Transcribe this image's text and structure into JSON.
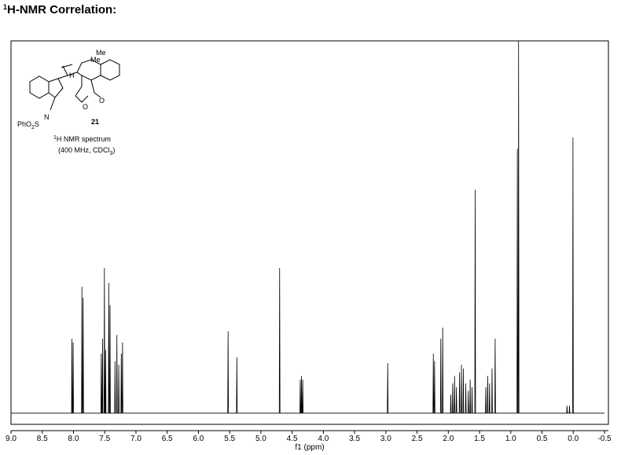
{
  "heading": [
    "1",
    "H-NMR Correlation:"
  ],
  "structure": {
    "atoms": [
      "Me",
      "Me",
      "H",
      "O",
      "O",
      "N"
    ],
    "sulfonyl": [
      "PhO",
      "2",
      "S"
    ],
    "compound": "21"
  },
  "caption": {
    "line1": [
      "1",
      "H NMR spectrum"
    ],
    "line2": [
      "(400 MHz, CDCl",
      "3",
      ")"
    ]
  },
  "chart_data": {
    "type": "line",
    "xlabel": "f1 (ppm)",
    "xlim": [
      9.0,
      -0.5
    ],
    "xticks": [
      {
        "value": 9.0,
        "label": "9.0"
      },
      8.5,
      {
        "value": 8.0,
        "label": "8.0"
      },
      7.5,
      {
        "value": 7.0,
        "label": "7.0"
      },
      6.5,
      {
        "value": 6.0,
        "label": "6.0"
      },
      5.5,
      {
        "value": 5.0,
        "label": "5.0"
      },
      4.5,
      {
        "value": 4.0,
        "label": "4.0"
      },
      3.5,
      {
        "value": 3.0,
        "label": "3.0"
      },
      2.5,
      {
        "value": 2.0,
        "label": "2.0"
      },
      1.5,
      {
        "value": 1.0,
        "label": "1.0"
      },
      0.5,
      {
        "value": 0.0,
        "label": "0.0"
      },
      -0.5
    ],
    "ylim": [
      -3,
      100
    ],
    "series": [
      {
        "color": "#000000",
        "x": [
          9.0,
          8.031,
          8.025,
          8.019,
          8.011,
          8.005,
          7.999,
          7.871,
          7.865,
          7.859,
          7.851,
          7.845,
          7.839,
          7.561,
          7.555,
          7.549,
          7.541,
          7.535,
          7.529,
          7.511,
          7.505,
          7.499,
          7.491,
          7.485,
          7.479,
          7.441,
          7.435,
          7.429,
          7.421,
          7.415,
          7.409,
          7.341,
          7.335,
          7.329,
          7.311,
          7.305,
          7.299,
          7.281,
          7.275,
          7.269,
          7.241,
          7.235,
          7.229,
          7.221,
          7.215,
          7.209,
          5.531,
          5.525,
          5.519,
          5.391,
          5.385,
          5.379,
          4.706,
          4.7,
          4.694,
          4.376,
          4.37,
          4.364,
          4.356,
          4.35,
          4.344,
          4.336,
          4.33,
          4.324,
          2.976,
          2.97,
          2.964,
          2.246,
          2.24,
          2.234,
          2.226,
          2.22,
          2.214,
          2.126,
          2.12,
          2.114,
          2.096,
          2.09,
          2.084,
          1.966,
          1.96,
          1.954,
          1.936,
          1.93,
          1.924,
          1.906,
          1.9,
          1.894,
          1.876,
          1.87,
          1.864,
          1.826,
          1.82,
          1.814,
          1.796,
          1.79,
          1.784,
          1.766,
          1.76,
          1.754,
          1.726,
          1.72,
          1.714,
          1.686,
          1.68,
          1.674,
          1.656,
          1.65,
          1.644,
          1.626,
          1.62,
          1.614,
          1.576,
          1.57,
          1.564,
          1.406,
          1.4,
          1.394,
          1.376,
          1.37,
          1.364,
          1.346,
          1.34,
          1.334,
          1.306,
          1.3,
          1.294,
          1.256,
          1.25,
          1.244,
          0.901,
          0.895,
          0.889,
          0.881,
          0.875,
          0.869,
          0.106,
          0.1,
          0.094,
          0.066,
          0.06,
          0.054,
          0.011,
          0.005,
          -0.001,
          -0.5
        ],
        "values": [
          0,
          0,
          20,
          0,
          0,
          19,
          0,
          0,
          34,
          0,
          0,
          31,
          0,
          0,
          16,
          0,
          0,
          20,
          0,
          0,
          39,
          0,
          0,
          17,
          0,
          0,
          35,
          0,
          0,
          29,
          0,
          0,
          14,
          0,
          0,
          21,
          0,
          0,
          13,
          0,
          0,
          16,
          0,
          0,
          19,
          0,
          0,
          22,
          0,
          0,
          15,
          0,
          0,
          39,
          0,
          0,
          9,
          0,
          0,
          10,
          0,
          0,
          9,
          0,
          0,
          13.5,
          0,
          0,
          16,
          0,
          0,
          14,
          0,
          0,
          20,
          0,
          0,
          23,
          0,
          0,
          5,
          0,
          0,
          8,
          0,
          0,
          10,
          0,
          0,
          7,
          0,
          0,
          11,
          0,
          0,
          13,
          0,
          0,
          12,
          0,
          0,
          8,
          0,
          0,
          6,
          0,
          0,
          9,
          0,
          0,
          7,
          0,
          0,
          60,
          0,
          0,
          7,
          0,
          0,
          10,
          0,
          0,
          8,
          0,
          0,
          12,
          0,
          0,
          20,
          0,
          0,
          71,
          0,
          0,
          100,
          0,
          0,
          2,
          0,
          0,
          2,
          0,
          0,
          74,
          0,
          0
        ]
      }
    ]
  }
}
